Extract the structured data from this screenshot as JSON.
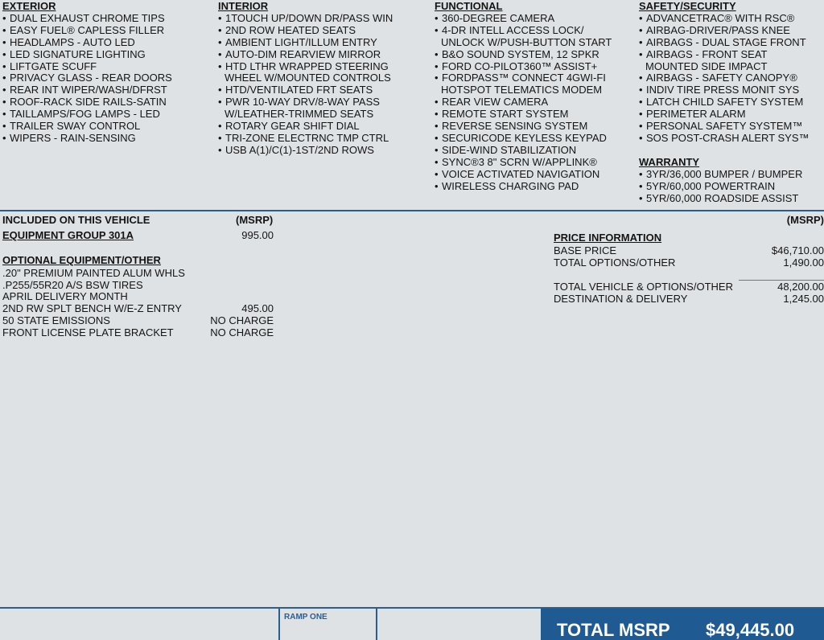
{
  "features": {
    "columns": [
      {
        "sections": [
          {
            "heading": "EXTERIOR",
            "items": [
              "DUAL EXHAUST CHROME TIPS",
              "EASY FUEL® CAPLESS FILLER",
              "HEADLAMPS - AUTO LED",
              "LED SIGNATURE LIGHTING",
              "LIFTGATE SCUFF",
              "PRIVACY GLASS - REAR DOORS",
              "REAR INT WIPER/WASH/DFRST",
              "ROOF-RACK SIDE RAILS-SATIN",
              "TAILLAMPS/FOG LAMPS - LED",
              "TRAILER SWAY CONTROL",
              "WIPERS - RAIN-SENSING"
            ]
          }
        ]
      },
      {
        "sections": [
          {
            "heading": "INTERIOR",
            "items": [
              "1TOUCH UP/DOWN DR/PASS WIN",
              "2ND ROW HEATED SEATS",
              "AMBIENT LIGHT/ILLUM ENTRY",
              "AUTO-DIM REARVIEW MIRROR",
              [
                "HTD LTHR WRAPPED STEERING",
                "WHEEL W/MOUNTED CONTROLS"
              ],
              "HTD/VENTILATED FRT SEATS",
              [
                "PWR 10-WAY DRV/8-WAY PASS",
                "W/LEATHER-TRIMMED SEATS"
              ],
              "ROTARY GEAR SHIFT DIAL",
              "TRI-ZONE ELECTRNC TMP CTRL",
              "USB A(1)/C(1)-1ST/2ND ROWS"
            ]
          }
        ]
      },
      {
        "sections": [
          {
            "heading": "FUNCTIONAL",
            "items": [
              "360-DEGREE CAMERA",
              [
                "4-DR INTELL ACCESS LOCK/",
                "UNLOCK W/PUSH-BUTTON START"
              ],
              "B&O SOUND SYSTEM, 12 SPKR",
              "FORD CO-PILOT360™ ASSIST+",
              [
                "FORDPASS™ CONNECT 4GWI-FI",
                "HOTSPOT TELEMATICS MODEM"
              ],
              "REAR VIEW CAMERA",
              "REMOTE START SYSTEM",
              "REVERSE SENSING SYSTEM",
              "SECURICODE KEYLESS KEYPAD",
              "SIDE-WIND STABILIZATION",
              "SYNC®3 8\" SCRN W/APPLINK®",
              "VOICE ACTIVATED NAVIGATION",
              "WIRELESS CHARGING PAD"
            ]
          }
        ]
      },
      {
        "sections": [
          {
            "heading": "SAFETY/SECURITY",
            "items": [
              "ADVANCETRAC® WITH RSC®",
              "AIRBAG-DRIVER/PASS KNEE",
              "AIRBAGS - DUAL STAGE FRONT",
              [
                "AIRBAGS - FRONT SEAT",
                "MOUNTED SIDE IMPACT"
              ],
              "AIRBAGS - SAFETY CANOPY®",
              "INDIV TIRE PRESS MONIT SYS",
              "LATCH CHILD SAFETY SYSTEM",
              "PERIMETER ALARM",
              "PERSONAL SAFETY SYSTEM™",
              "SOS POST-CRASH ALERT SYS™"
            ]
          },
          {
            "heading": "WARRANTY",
            "items": [
              "3YR/36,000 BUMPER / BUMPER",
              "5YR/60,000 POWERTRAIN",
              "5YR/60,000 ROADSIDE ASSIST"
            ]
          }
        ]
      }
    ]
  },
  "included": {
    "title": "INCLUDED ON THIS VEHICLE",
    "msrp_label": "(MSRP)",
    "group": {
      "name": "EQUIPMENT GROUP 301A",
      "price": "995.00"
    },
    "optional": {
      "heading": "OPTIONAL EQUIPMENT/OTHER",
      "rows": [
        {
          "name": ".20\" PREMIUM PAINTED ALUM WHLS"
        },
        {
          "name": ".P255/55R20 A/S BSW TIRES"
        },
        {
          "name": "APRIL DELIVERY MONTH"
        },
        {
          "name": "2ND RW SPLT BENCH W/E-Z ENTRY",
          "price": "495.00"
        },
        {
          "name": "50 STATE EMISSIONS",
          "price": "NO CHARGE"
        },
        {
          "name": "FRONT LICENSE PLATE BRACKET",
          "price": "NO CHARGE"
        }
      ]
    }
  },
  "price_info": {
    "msrp_label": "(MSRP)",
    "heading": "PRICE INFORMATION",
    "subtotal_rows": [
      {
        "label": "BASE PRICE",
        "value": "$46,710.00"
      },
      {
        "label": "TOTAL OPTIONS/OTHER",
        "value": "1,490.00"
      }
    ],
    "total_rows": [
      {
        "label": "TOTAL VEHICLE & OPTIONS/OTHER",
        "value": "48,200.00"
      },
      {
        "label": "DESTINATION & DELIVERY",
        "value": "1,245.00"
      }
    ]
  },
  "footer": {
    "ramp": "RAMP ONE",
    "total_label": "TOTAL MSRP",
    "total_value": "$49,445.00"
  }
}
